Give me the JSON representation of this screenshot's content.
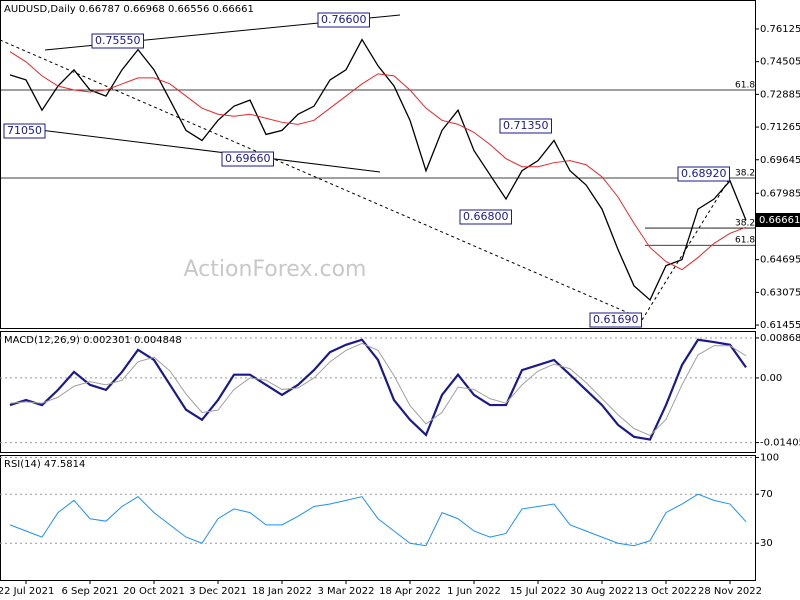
{
  "chart_data": [
    {
      "type": "line",
      "title": "AUDUSD,Daily 0.66787 0.66968 0.66556 0.66661",
      "watermark": "ActionForex.com",
      "categories": [
        null,
        "22 Jul 2021",
        null,
        null,
        null,
        "6 Sep 2021",
        null,
        null,
        null,
        "20 Oct 2021",
        null,
        null,
        null,
        "3 Dec 2021",
        null,
        null,
        null,
        "18 Jan 2022",
        null,
        null,
        null,
        "3 Mar 2022",
        null,
        null,
        null,
        "18 Apr 2022",
        null,
        null,
        null,
        "1 Jun 2022",
        null,
        null,
        null,
        "15 Jul 2022",
        null,
        null,
        null,
        "30 Aug 2022",
        null,
        null,
        null,
        "13 Oct 2022",
        null,
        null,
        null,
        "28 Nov 2022",
        null
      ],
      "series": [
        {
          "color": "#000000",
          "values": [
            0.7385,
            0.736,
            0.721,
            0.733,
            0.741,
            0.731,
            0.728,
            0.741,
            0.751,
            0.741,
            0.726,
            0.711,
            0.706,
            0.716,
            0.723,
            0.726,
            0.709,
            0.711,
            0.719,
            0.723,
            0.736,
            0.741,
            0.756,
            0.743,
            0.733,
            0.716,
            0.691,
            0.711,
            0.721,
            0.701,
            0.689,
            0.677,
            0.691,
            0.696,
            0.706,
            0.691,
            0.684,
            0.672,
            0.652,
            0.634,
            0.627,
            0.644,
            0.647,
            0.672,
            0.677,
            0.686,
            0.6665
          ]
        },
        {
          "color": "#e8262b",
          "values": [
            0.75,
            0.745,
            0.738,
            0.733,
            0.731,
            0.73,
            0.731,
            0.734,
            0.737,
            0.737,
            0.734,
            0.728,
            0.722,
            0.719,
            0.718,
            0.719,
            0.717,
            0.715,
            0.714,
            0.716,
            0.722,
            0.728,
            0.734,
            0.739,
            0.738,
            0.731,
            0.722,
            0.716,
            0.714,
            0.71,
            0.704,
            0.697,
            0.693,
            0.693,
            0.695,
            0.696,
            0.694,
            0.688,
            0.678,
            0.665,
            0.653,
            0.646,
            0.642,
            0.648,
            0.655,
            0.66,
            0.663
          ]
        }
      ],
      "ylim": [
        0.6131,
        0.7756
      ],
      "yticks": [
        0.76125,
        0.74505,
        0.72885,
        0.71265,
        0.69645,
        0.67985,
        0.64695,
        0.63075,
        0.61455
      ],
      "grid": false,
      "last_value": 0.66661,
      "levels": [
        {
          "value": 0.731,
          "label": "61.8"
        },
        {
          "value": 0.6874,
          "label": "38.2"
        },
        {
          "value": 0.6626,
          "label": "38.2"
        },
        {
          "value": 0.6541,
          "label": "61.8"
        }
      ],
      "annotations": [
        "0.75550",
        "0.76600",
        "71050",
        "0.69660",
        "0.71350",
        "0.66800",
        "0.68920",
        "0.61690"
      ]
    },
    {
      "type": "line",
      "title": "MACD(12,26,9) 0.002301 0.004848",
      "series": [
        {
          "color": "#1a1a8c",
          "values": [
            -0.0059,
            -0.0048,
            -0.0059,
            -0.0026,
            0.0013,
            -0.0015,
            -0.0026,
            0.0013,
            0.0061,
            0.0039,
            -0.0015,
            -0.0069,
            -0.0091,
            -0.0048,
            0.0007,
            0.0007,
            -0.0015,
            -0.0037,
            -0.0015,
            0.0017,
            0.0056,
            0.0072,
            0.0083,
            0.0039,
            -0.0048,
            -0.0091,
            -0.0124,
            -0.0037,
            0.0007,
            -0.0037,
            -0.0059,
            -0.0059,
            0.0017,
            0.0028,
            0.0039,
            0.0007,
            -0.0026,
            -0.0059,
            -0.0102,
            -0.0128,
            -0.0134,
            -0.0059,
            0.0028,
            0.0083,
            0.0078,
            0.0072,
            0.0023
          ]
        },
        {
          "color": "#a0a0a0",
          "values": [
            -0.0055,
            -0.0052,
            -0.0055,
            -0.0042,
            -0.0018,
            -0.0008,
            -0.0015,
            -0.0005,
            0.0035,
            0.0045,
            0.0015,
            -0.0035,
            -0.0075,
            -0.007,
            -0.0025,
            0,
            -0.0005,
            -0.0025,
            -0.0022,
            0,
            0.0035,
            0.006,
            0.0075,
            0.006,
            0.0005,
            -0.006,
            -0.01,
            -0.0075,
            -0.002,
            -0.0025,
            -0.0045,
            -0.0055,
            -0.0015,
            0.0015,
            0.003,
            0.002,
            -0.001,
            -0.0045,
            -0.008,
            -0.011,
            -0.0125,
            -0.009,
            -0.0015,
            0.005,
            0.007,
            0.007,
            0.0048
          ]
        }
      ],
      "ylim": [
        -0.0161,
        0.0102
      ],
      "yticks": [
        0.008687,
        {
          "value": 0,
          "label": "0.00"
        },
        -0.014056
      ],
      "grid": true
    },
    {
      "type": "line",
      "title": "RSI(14) 47.5814",
      "series": [
        {
          "color": "#1e90ff",
          "values": [
            45,
            40,
            35,
            55,
            65,
            50,
            48,
            60,
            68,
            55,
            45,
            35,
            30,
            50,
            58,
            55,
            45,
            45,
            52,
            60,
            62,
            65,
            68,
            50,
            40,
            30,
            28,
            55,
            50,
            40,
            35,
            38,
            58,
            60,
            62,
            45,
            40,
            35,
            30,
            28,
            32,
            55,
            62,
            70,
            65,
            62,
            47.5814
          ]
        }
      ],
      "ylim": [
        0,
        102
      ],
      "yticks": [
        100,
        70,
        30
      ],
      "grid": true
    }
  ]
}
